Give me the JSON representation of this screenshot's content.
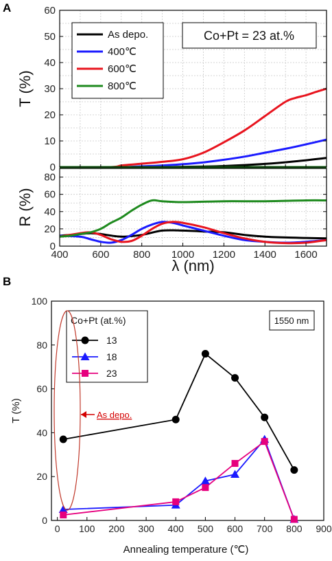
{
  "panel_a_label": "A",
  "panel_b_label": "B",
  "chart_data": [
    {
      "type": "line",
      "panel": "A-top",
      "ylabel": "T (%)",
      "ylim": [
        0,
        60
      ],
      "yticks": [
        0,
        10,
        20,
        30,
        40,
        50,
        60
      ],
      "xlim": [
        400,
        1700
      ],
      "annotation": "Co+Pt = 23 at.%",
      "legend_position": "top-left",
      "grid": true,
      "series": [
        {
          "name": "As depo.",
          "color": "#000000",
          "x": [
            400,
            800,
            1000,
            1200,
            1400,
            1550,
            1700
          ],
          "y": [
            0,
            0,
            0.1,
            0.4,
            1.2,
            2.2,
            3.5
          ]
        },
        {
          "name": "400℃",
          "color": "#1a1aff",
          "x": [
            400,
            700,
            800,
            900,
            1000,
            1100,
            1200,
            1300,
            1400,
            1500,
            1600,
            1700
          ],
          "y": [
            0,
            0,
            0.3,
            0.6,
            1.1,
            1.8,
            2.8,
            4.0,
            5.5,
            7.0,
            8.7,
            10.5
          ]
        },
        {
          "name": "600℃",
          "color": "#e8141e",
          "x": [
            400,
            650,
            700,
            800,
            900,
            1000,
            1100,
            1200,
            1300,
            1400,
            1500,
            1550,
            1600,
            1650,
            1700
          ],
          "y": [
            0,
            0,
            0.6,
            1.3,
            2.0,
            3.0,
            5.5,
            9.5,
            14.0,
            19.5,
            25.0,
            26.5,
            27.5,
            28.8,
            30.0
          ]
        },
        {
          "name": "800℃",
          "color": "#1e8a1e",
          "x": [
            400,
            1700
          ],
          "y": [
            0,
            0
          ]
        }
      ]
    },
    {
      "type": "line",
      "panel": "A-bottom",
      "ylabel": "R (%)",
      "xlabel": "λ (nm)",
      "ylim": [
        0,
        90
      ],
      "yticks": [
        0,
        20,
        40,
        60,
        80
      ],
      "xlim": [
        400,
        1700
      ],
      "xticks": [
        400,
        600,
        800,
        1000,
        1200,
        1400,
        1600
      ],
      "grid": true,
      "series": [
        {
          "name": "As depo.",
          "color": "#000000",
          "x": [
            400,
            500,
            550,
            600,
            700,
            800,
            900,
            1000,
            1100,
            1200,
            1300,
            1400,
            1500,
            1600,
            1700
          ],
          "y": [
            12,
            14,
            15,
            14,
            11,
            13,
            18,
            18,
            17,
            16,
            13,
            11,
            10,
            9.5,
            9
          ]
        },
        {
          "name": "400℃",
          "color": "#1a1aff",
          "x": [
            400,
            500,
            550,
            600,
            650,
            700,
            750,
            800,
            850,
            900,
            950,
            1000,
            1100,
            1200,
            1300,
            1400,
            1500,
            1600,
            1700
          ],
          "y": [
            12,
            11,
            8,
            5,
            4,
            7,
            13,
            20,
            25,
            28,
            27,
            24,
            18,
            12,
            7,
            5,
            4,
            5,
            7
          ]
        },
        {
          "name": "600℃",
          "color": "#e8141e",
          "x": [
            400,
            500,
            550,
            600,
            650,
            700,
            750,
            800,
            850,
            900,
            950,
            1000,
            1100,
            1200,
            1300,
            1400,
            1500,
            1600,
            1700
          ],
          "y": [
            11,
            15,
            16,
            13,
            8,
            5,
            6,
            12,
            20,
            26,
            28,
            27,
            22,
            15,
            9,
            5,
            3.5,
            4,
            7
          ]
        },
        {
          "name": "800℃",
          "color": "#1e8a1e",
          "x": [
            400,
            450,
            500,
            550,
            600,
            650,
            700,
            750,
            800,
            850,
            900,
            1000,
            1200,
            1400,
            1600,
            1700
          ],
          "y": [
            11,
            12,
            14,
            16,
            20,
            27,
            33,
            41,
            48,
            53,
            52,
            51,
            52,
            52,
            53,
            53
          ]
        }
      ]
    },
    {
      "type": "line",
      "panel": "B",
      "ylabel": "T (%)",
      "xlabel": "Annealing temperature (℃)",
      "ylim": [
        0,
        100
      ],
      "yticks": [
        0,
        20,
        40,
        60,
        80,
        100
      ],
      "xlim": [
        -20,
        900
      ],
      "xticks": [
        0,
        100,
        200,
        300,
        400,
        500,
        600,
        700,
        800,
        900
      ],
      "legend_title": "Co+Pt (at.%)",
      "legend_position": "top-left",
      "annotation": "1550 nm",
      "callout": "As depo.",
      "series": [
        {
          "name": "13",
          "color": "#000000",
          "marker": "circle",
          "x": [
            20,
            400,
            500,
            600,
            700,
            800
          ],
          "y": [
            37,
            46,
            76,
            65,
            47,
            23
          ]
        },
        {
          "name": "18",
          "color": "#1a1aff",
          "marker": "triangle",
          "x": [
            20,
            400,
            500,
            600,
            700,
            800
          ],
          "y": [
            5,
            7,
            18,
            21,
            37,
            0.5
          ]
        },
        {
          "name": "23",
          "color": "#e6007e",
          "marker": "square",
          "x": [
            20,
            400,
            500,
            600,
            700,
            800
          ],
          "y": [
            2.5,
            8.5,
            15,
            26,
            36,
            0.5
          ]
        }
      ]
    }
  ]
}
